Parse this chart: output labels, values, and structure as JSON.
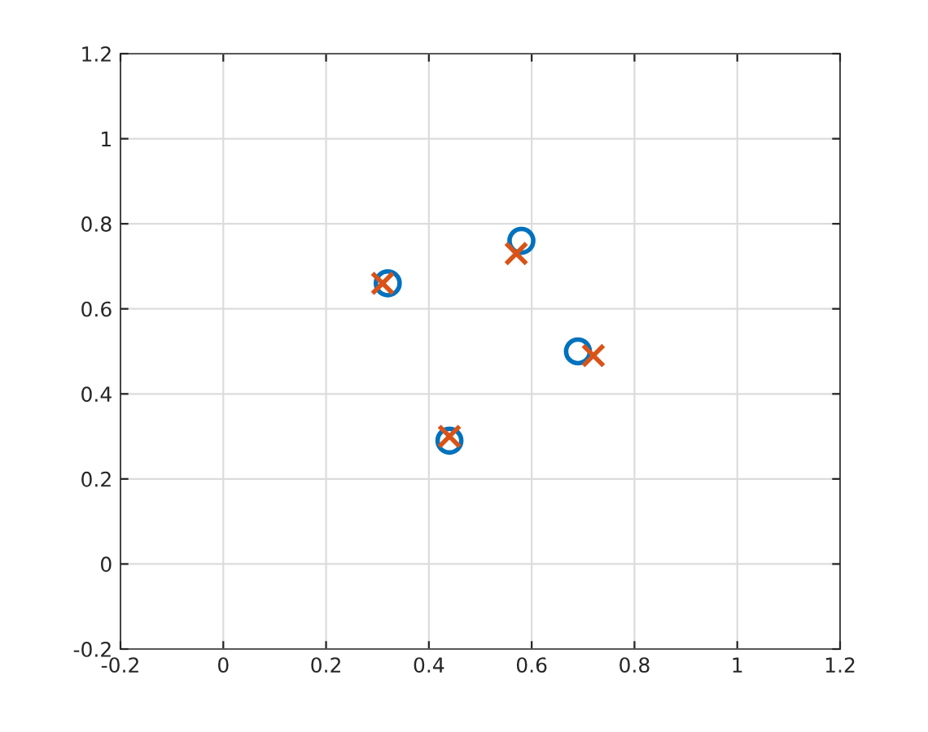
{
  "chart_data": {
    "type": "scatter",
    "series": [
      {
        "color": "#0072bd",
        "marker": "circle",
        "x": [
          0.32,
          0.58,
          0.69,
          0.44
        ],
        "values": [
          0.66,
          0.76,
          0.5,
          0.29
        ]
      },
      {
        "color": "#d95319",
        "marker": "cross",
        "x": [
          0.31,
          0.57,
          0.72,
          0.44
        ],
        "values": [
          0.66,
          0.73,
          0.49,
          0.3
        ]
      }
    ],
    "xlim": [
      -0.2,
      1.2
    ],
    "ylim": [
      -0.2,
      1.2
    ],
    "xticks": [
      -0.2,
      0,
      0.2,
      0.4,
      0.6,
      0.8,
      1,
      1.2
    ],
    "yticks": [
      -0.2,
      0,
      0.2,
      0.4,
      0.6,
      0.8,
      1,
      1.2
    ],
    "grid": true
  }
}
